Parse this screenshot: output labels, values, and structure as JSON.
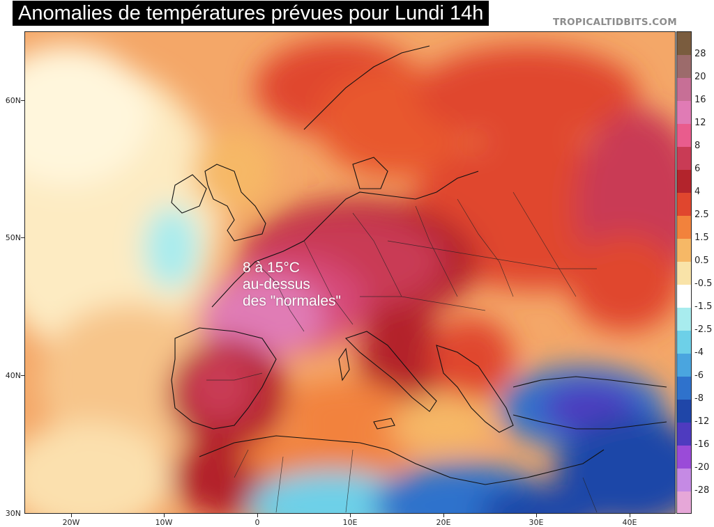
{
  "title": "Anomalies de températures prévues pour Lundi 14h",
  "credit": "TROPICALTIDBITS.COM",
  "annotation": [
    "8 à 15°C",
    "au-dessus",
    "des \"normales\""
  ],
  "map": {
    "type": "temperature-anomaly-map",
    "region": "Europe, North Africa, Middle East",
    "lat_range": [
      30,
      65
    ],
    "lon_range": [
      -25,
      45
    ],
    "lat_labels": [
      "60N",
      "50N",
      "40N",
      "30N"
    ],
    "lon_labels": [
      "20W",
      "10W",
      "0",
      "10E",
      "20E",
      "30E",
      "40E"
    ],
    "colorbar": {
      "labels": [
        "28",
        "20",
        "16",
        "12",
        "8",
        "6",
        "4",
        "2.5",
        "1.5",
        "0.5",
        "-0.5",
        "-1.5",
        "-2.5",
        "-4",
        "-6",
        "-8",
        "-12",
        "-16",
        "-20",
        "-28"
      ],
      "colors": [
        "#7a5c3e",
        "#9c6b6b",
        "#c76f96",
        "#e07bb5",
        "#e95c8d",
        "#c93b55",
        "#b3242c",
        "#e0462e",
        "#f2823c",
        "#f6b866",
        "#f9e3a8",
        "#ffffff",
        "#a8ecee",
        "#6dd0e8",
        "#4aa5df",
        "#2f72cc",
        "#1f46a8",
        "#4e3bbf",
        "#9a4bd8",
        "#c58ae4",
        "#e6a7d8"
      ]
    }
  }
}
